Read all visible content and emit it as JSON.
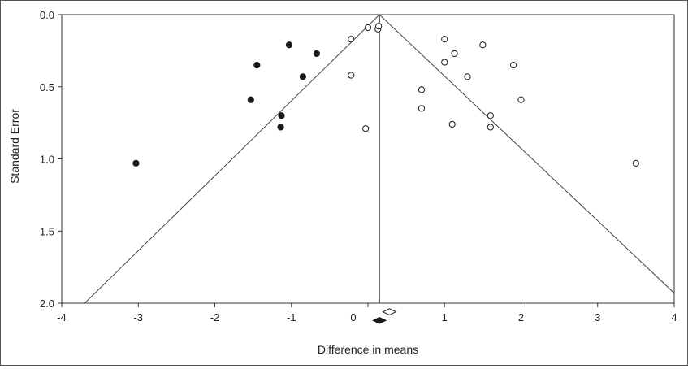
{
  "chart_data": {
    "type": "scatter",
    "title": "",
    "xlabel": "Difference in means",
    "ylabel": "Standard Error",
    "xlim": [
      -4,
      4
    ],
    "ylim": [
      0,
      2
    ],
    "y_inverted": true,
    "x_ticks": [
      -4,
      -3,
      -2,
      -1,
      0,
      1,
      2,
      3,
      4
    ],
    "x_tick_labels": [
      "-4",
      "-3",
      "-2",
      "-1",
      "0",
      "1",
      "2",
      "3",
      "4"
    ],
    "y_ticks": [
      0,
      0.5,
      1,
      1.5,
      2
    ],
    "y_tick_labels": [
      "0.0",
      "0.5",
      "1.0",
      "1.5",
      "2.0"
    ],
    "grid": false,
    "pooled_estimate": 0.15,
    "funnel_lines": [
      {
        "from": [
          0.15,
          0.0
        ],
        "to": [
          -3.7,
          2.0
        ]
      },
      {
        "from": [
          0.15,
          0.0
        ],
        "to": [
          4.0,
          1.93
        ]
      },
      {
        "from": [
          0.15,
          0.0
        ],
        "to": [
          0.15,
          2.0
        ]
      }
    ],
    "series": [
      {
        "marker": "filled",
        "color": "#1a1a1a",
        "x": [
          -3.03,
          -1.53,
          -1.45,
          -1.13,
          -1.14,
          -1.03,
          -0.85,
          -0.67
        ],
        "y": [
          1.03,
          0.59,
          0.35,
          0.7,
          0.78,
          0.21,
          0.43,
          0.27
        ]
      },
      {
        "marker": "open",
        "color": "#1a1a1a",
        "x": [
          -0.22,
          0.0,
          0.13,
          0.14,
          -0.22,
          0.7,
          0.7,
          1.0,
          1.0,
          1.13,
          1.1,
          1.3,
          1.5,
          1.6,
          1.6,
          1.9,
          2.0,
          3.5,
          -0.03
        ],
        "y": [
          0.17,
          0.09,
          0.1,
          0.08,
          0.42,
          0.52,
          0.65,
          0.17,
          0.33,
          0.27,
          0.76,
          0.43,
          0.21,
          0.7,
          0.78,
          0.35,
          0.59,
          1.03,
          0.79
        ]
      }
    ],
    "summary_markers": [
      {
        "marker": "open",
        "x": 0.28,
        "y": 2.06
      },
      {
        "marker": "filled",
        "x": 0.15,
        "y": 2.12
      }
    ]
  }
}
